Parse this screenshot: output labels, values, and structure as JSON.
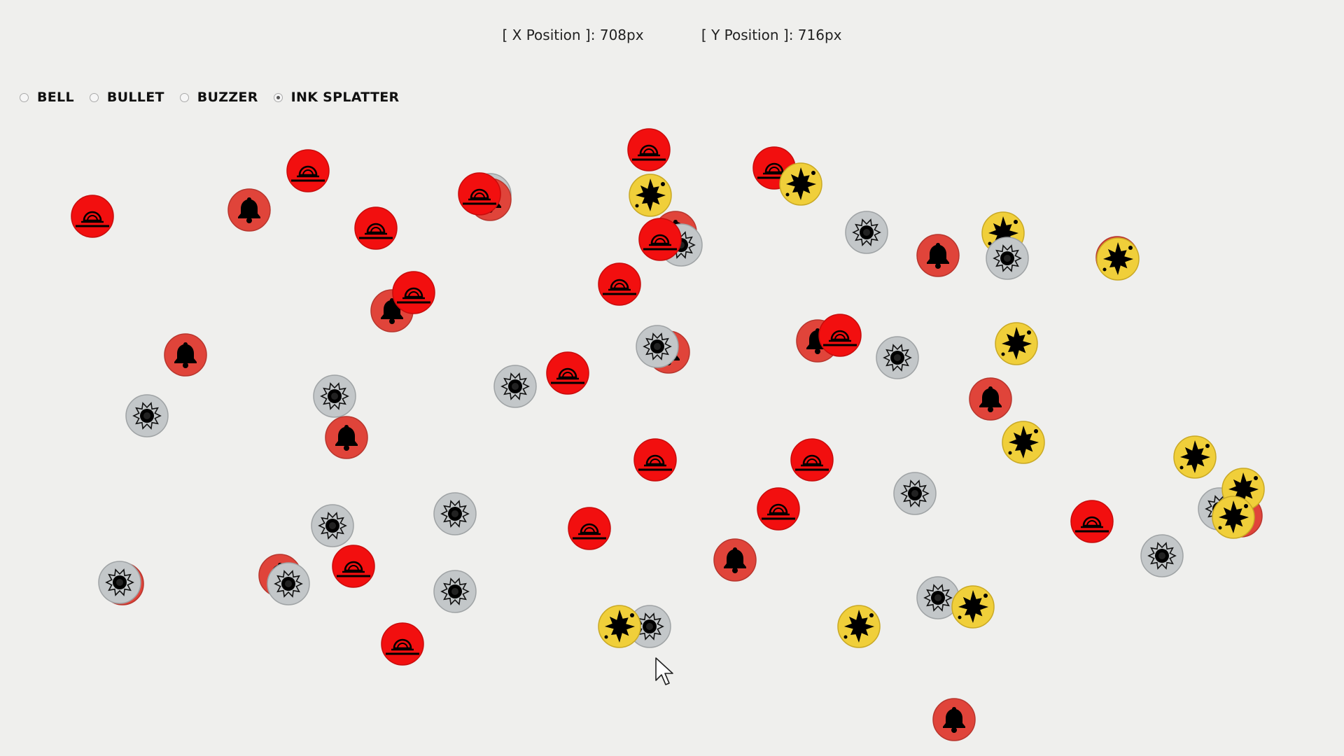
{
  "readout": {
    "x_label": "[ X Position ]:",
    "x_value": "708px",
    "y_label": "[ Y Position ]:",
    "y_value": "716px"
  },
  "options": [
    {
      "label": "BELL",
      "selected": false
    },
    {
      "label": "BULLET",
      "selected": false
    },
    {
      "label": "BUZZER",
      "selected": false
    },
    {
      "label": "INK SPLATTER",
      "selected": true
    }
  ],
  "colors": {
    "bell": "#e0443a",
    "bullet": "#c3c7c9",
    "buzzer": "#f20f0f",
    "ink": "#f0cf3a",
    "background": "#efefed"
  }
}
